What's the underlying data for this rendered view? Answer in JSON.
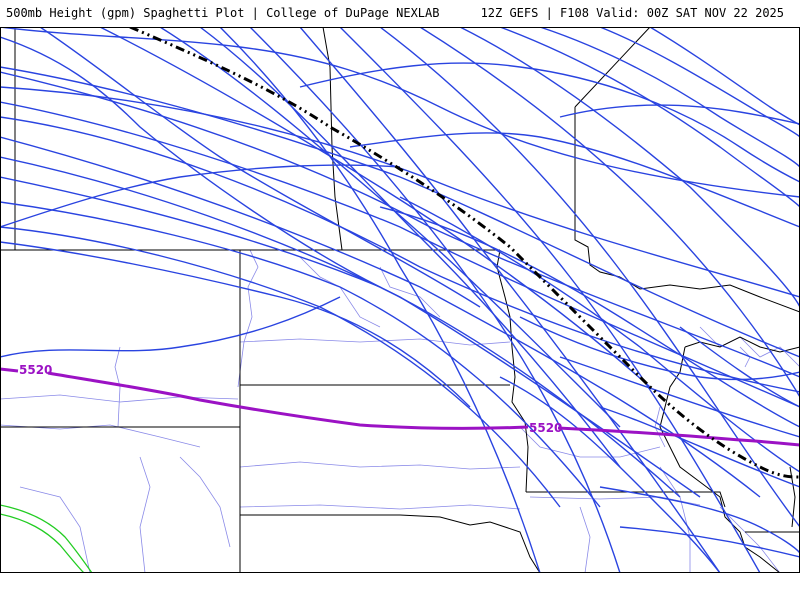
{
  "header": {
    "title": "500mb Height (gpm) Spaghetti Plot | College of DuPage NEXLAB",
    "valid": "12Z GEFS | F108 Valid: 00Z SAT NOV 22 2025"
  },
  "map": {
    "contour_value": "5520",
    "contour_labels": [
      "5520",
      "5520"
    ],
    "colors": {
      "ensemble_members": "#2a44e0",
      "mean_5520": "#9b12c4",
      "mean_line": "#000000",
      "green_member": "#22cc22",
      "state_borders": "#000000",
      "county_borders": "#8a8ae8"
    }
  }
}
